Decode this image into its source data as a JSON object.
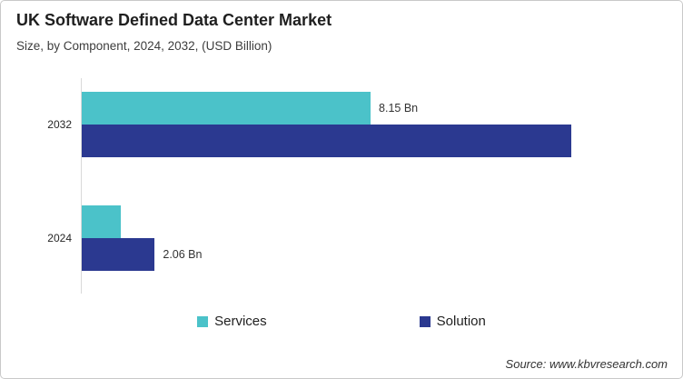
{
  "card": {
    "title": "UK Software Defined Data Center Market",
    "subtitle": "Size, by Component, 2024, 2032, (USD Billion)",
    "source": "Source: www.kbvresearch.com"
  },
  "chart_data": {
    "type": "bar",
    "orientation": "horizontal",
    "title": "UK Software Defined Data Center Market",
    "subtitle": "Size, by Component, 2024, 2032, (USD Billion)",
    "value_unit": "USD Billion",
    "categories": [
      "2032",
      "2024"
    ],
    "series": [
      {
        "name": "Services",
        "color": "#4BC2C9",
        "values": [
          8.15,
          1.1
        ],
        "data_labels": [
          "8.15 Bn",
          null
        ]
      },
      {
        "name": "Solution",
        "color": "#2B3990",
        "values": [
          13.8,
          2.06
        ],
        "data_labels": [
          null,
          "2.06 Bn"
        ]
      }
    ],
    "xlim": [
      0,
      16.4
    ],
    "grid": false,
    "x_axis_visible": false,
    "axis_line_color": "#d9d9d9",
    "legend_position": "bottom"
  }
}
